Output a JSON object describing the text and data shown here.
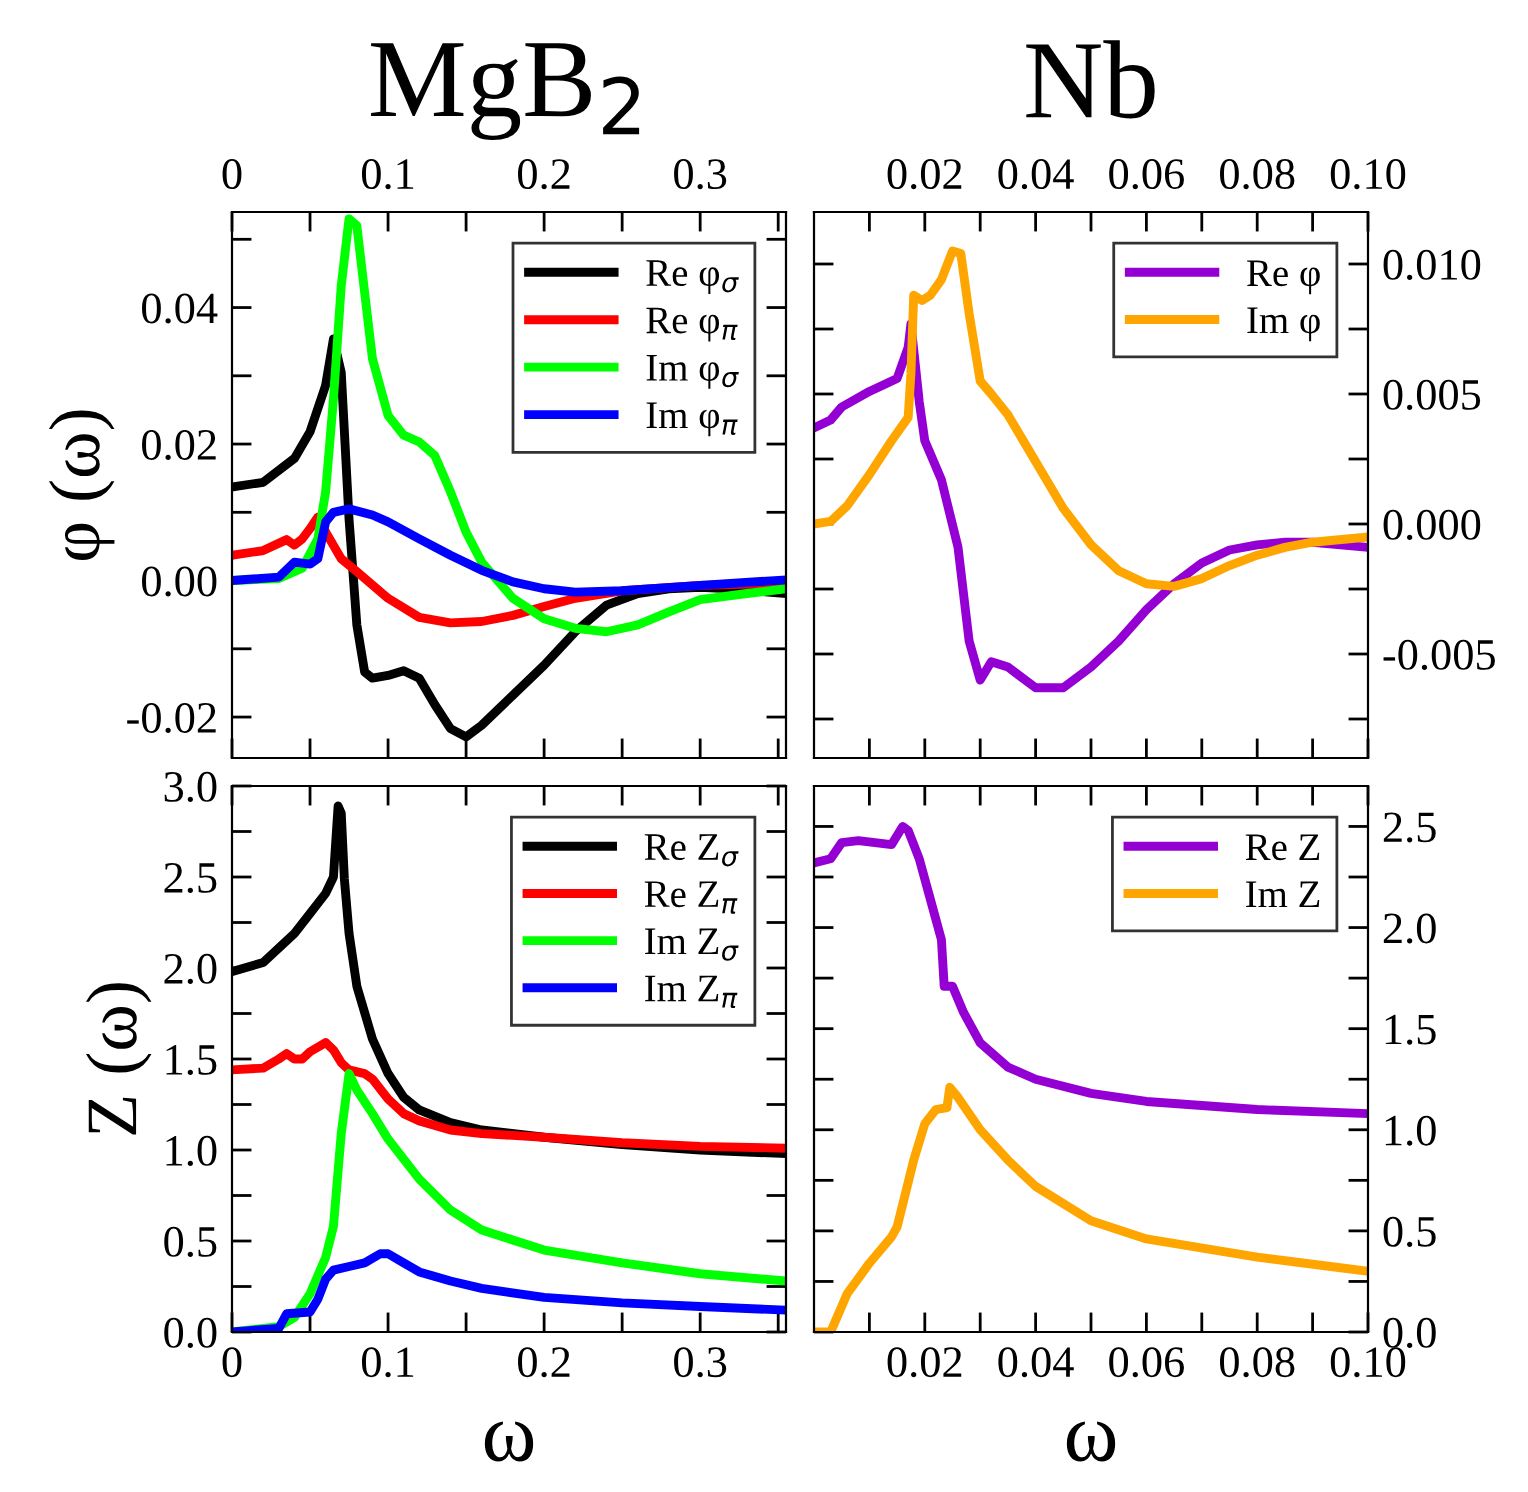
{
  "chart_data": [
    {
      "type": "line",
      "title": "MgB$_{2}$",
      "ylabel": "φ (ω)",
      "legend": "top right",
      "grid": false,
      "marker": "none",
      "line_style": "solid",
      "xlim": [
        0,
        0.355
      ],
      "ylim": [
        -0.026,
        0.054
      ],
      "xticks": [
        0,
        {
          "value": 0.05,
          "label": null
        },
        0.1,
        {
          "value": 0.15,
          "label": null
        },
        0.2,
        {
          "value": 0.25,
          "label": null
        },
        0.3,
        {
          "value": 0.35,
          "label": null
        }
      ],
      "yticks": [
        {
          "value": -0.02,
          "label": "-0.02"
        },
        {
          "value": -0.01,
          "label": null
        },
        {
          "value": 0,
          "label": "0.00"
        },
        {
          "value": 0.01,
          "label": null
        },
        0.02,
        {
          "value": 0.03,
          "label": null
        },
        0.04,
        {
          "value": 0.05,
          "label": null
        }
      ],
      "series": [
        {
          "name": "Re φ$_{σ}$",
          "color": "#000000",
          "x": [
            0,
            0.02,
            0.04,
            0.05,
            0.06,
            0.065,
            0.07,
            0.075,
            0.08,
            0.085,
            0.09,
            0.1,
            0.11,
            0.12,
            0.13,
            0.14,
            0.15,
            0.16,
            0.18,
            0.2,
            0.22,
            0.24,
            0.26,
            0.28,
            0.3,
            0.32,
            0.355
          ],
          "values": [
            0.0137,
            0.0144,
            0.0179,
            0.0218,
            0.0286,
            0.0354,
            0.0305,
            0.009,
            -0.0065,
            -0.0134,
            -0.0143,
            -0.0139,
            -0.0132,
            -0.0143,
            -0.0182,
            -0.0217,
            -0.0229,
            -0.0212,
            -0.0168,
            -0.0124,
            -0.0075,
            -0.0036,
            -0.0019,
            -0.0012,
            -0.001,
            -0.0012,
            -0.0019
          ]
        },
        {
          "name": "Re φ$_{π}$",
          "color": "#ff0000",
          "x": [
            0,
            0.02,
            0.035,
            0.04,
            0.045,
            0.05,
            0.055,
            0.06,
            0.07,
            0.08,
            0.1,
            0.12,
            0.14,
            0.16,
            0.18,
            0.2,
            0.22,
            0.25,
            0.3,
            0.355
          ],
          "values": [
            0.0037,
            0.0044,
            0.006,
            0.0052,
            0.0061,
            0.0076,
            0.0093,
            0.0071,
            0.0032,
            0.0013,
            -0.0026,
            -0.0054,
            -0.0062,
            -0.006,
            -0.0051,
            -0.0038,
            -0.0026,
            -0.0015,
            -0.0007,
            -0.0004
          ]
        },
        {
          "name": "Im φ$_{σ}$",
          "color": "#00ff00",
          "x": [
            0,
            0.03,
            0.045,
            0.055,
            0.06,
            0.065,
            0.07,
            0.075,
            0.08,
            0.085,
            0.09,
            0.1,
            0.11,
            0.12,
            0.13,
            0.14,
            0.15,
            0.16,
            0.18,
            0.2,
            0.22,
            0.24,
            0.26,
            0.28,
            0.3,
            0.33,
            0.355
          ],
          "values": [
            0,
            0.0003,
            0.0018,
            0.0061,
            0.013,
            0.0266,
            0.0432,
            0.053,
            0.052,
            0.0422,
            0.0325,
            0.0242,
            0.0213,
            0.0203,
            0.0183,
            0.013,
            0.0071,
            0.0027,
            -0.0026,
            -0.0056,
            -0.007,
            -0.0075,
            -0.0065,
            -0.0046,
            -0.0028,
            -0.0019,
            -0.0012
          ]
        },
        {
          "name": "Im φ$_{π}$",
          "color": "#0000ff",
          "x": [
            0,
            0.03,
            0.04,
            0.05,
            0.055,
            0.06,
            0.065,
            0.075,
            0.09,
            0.1,
            0.12,
            0.14,
            0.16,
            0.18,
            0.2,
            0.22,
            0.25,
            0.3,
            0.355
          ],
          "values": [
            0,
            0.0005,
            0.0027,
            0.0024,
            0.0032,
            0.0086,
            0.01,
            0.0105,
            0.0096,
            0.0086,
            0.0061,
            0.0037,
            0.0015,
            -0.0002,
            -0.0012,
            -0.0017,
            -0.0015,
            -0.0007,
            0.0001
          ]
        }
      ]
    },
    {
      "type": "line",
      "title": "Nb",
      "legend": "top right",
      "grid": false,
      "marker": "none",
      "line_style": "solid",
      "xlim": [
        0,
        0.1
      ],
      "ylim": [
        -0.009,
        0.012
      ],
      "xticks": [
        {
          "value": 0.01,
          "label": null
        },
        0.02,
        {
          "value": 0.03,
          "label": null
        },
        0.04,
        {
          "value": 0.05,
          "label": null
        },
        0.06,
        {
          "value": 0.07,
          "label": null
        },
        0.08,
        {
          "value": 0.09,
          "label": null
        },
        {
          "value": 0.1,
          "label": "0.10"
        }
      ],
      "yticks": [
        {
          "value": -0.0075,
          "label": null
        },
        {
          "value": -0.005,
          "label": "-0.005"
        },
        {
          "value": -0.0025,
          "label": null
        },
        {
          "value": 0,
          "label": "0.000"
        },
        {
          "value": 0.0025,
          "label": null
        },
        0.005,
        {
          "value": 0.0075,
          "label": null
        },
        {
          "value": 0.01,
          "label": "0.010"
        }
      ],
      "series": [
        {
          "name": "Re φ",
          "color": "#9400d3",
          "x": [
            0,
            0.003,
            0.005,
            0.01,
            0.015,
            0.017,
            0.0175,
            0.019,
            0.02,
            0.023,
            0.026,
            0.028,
            0.03,
            0.032,
            0.035,
            0.04,
            0.045,
            0.05,
            0.055,
            0.06,
            0.065,
            0.07,
            0.075,
            0.08,
            0.085,
            0.09,
            0.1
          ],
          "values": [
            0.0037,
            0.004,
            0.0045,
            0.0051,
            0.0056,
            0.0068,
            0.0077,
            0.0047,
            0.0032,
            0.0017,
            -0.0009,
            -0.0045,
            -0.006,
            -0.0053,
            -0.0055,
            -0.0063,
            -0.0063,
            -0.0055,
            -0.0045,
            -0.0033,
            -0.0023,
            -0.0015,
            -0.001,
            -0.0008,
            -0.0007,
            -0.0007,
            -0.0009
          ]
        },
        {
          "name": "Im φ",
          "color": "#ffa500",
          "x": [
            0,
            0.003,
            0.006,
            0.01,
            0.014,
            0.017,
            0.0175,
            0.018,
            0.0195,
            0.021,
            0.023,
            0.025,
            0.0265,
            0.028,
            0.03,
            0.032,
            0.035,
            0.04,
            0.045,
            0.05,
            0.055,
            0.06,
            0.065,
            0.07,
            0.075,
            0.08,
            0.085,
            0.09,
            0.1
          ],
          "values": [
            0,
            0.0001,
            0.0007,
            0.0019,
            0.0032,
            0.0041,
            0.0058,
            0.0088,
            0.0086,
            0.0088,
            0.0094,
            0.0105,
            0.0104,
            0.0081,
            0.0055,
            0.005,
            0.0042,
            0.0024,
            0.0006,
            -0.0008,
            -0.0018,
            -0.0023,
            -0.0024,
            -0.0021,
            -0.0016,
            -0.0012,
            -0.0009,
            -0.0007,
            -0.0005
          ]
        }
      ]
    },
    {
      "type": "line",
      "xlabel": "ω",
      "ylabel": "Z (ω)",
      "legend": "top right",
      "grid": false,
      "marker": "none",
      "line_style": "solid",
      "xlim": [
        0,
        0.355
      ],
      "ylim": [
        0,
        3.0
      ],
      "xticks": [
        0,
        {
          "value": 0.05,
          "label": null
        },
        0.1,
        {
          "value": 0.15,
          "label": null
        },
        0.2,
        {
          "value": 0.25,
          "label": null
        },
        0.3,
        {
          "value": 0.35,
          "label": null
        }
      ],
      "yticks": [
        {
          "value": 0,
          "label": "0.0"
        },
        {
          "value": 0.25,
          "label": null
        },
        0.5,
        {
          "value": 0.75,
          "label": null
        },
        {
          "value": 1,
          "label": "1.0"
        },
        {
          "value": 1.25,
          "label": null
        },
        1.5,
        {
          "value": 1.75,
          "label": null
        },
        {
          "value": 2,
          "label": "2.0"
        },
        {
          "value": 2.25,
          "label": null
        },
        2.5,
        {
          "value": 2.75,
          "label": null
        },
        {
          "value": 3,
          "label": "3.0"
        }
      ],
      "series": [
        {
          "name": "Re Z$_{σ}$",
          "color": "#000000",
          "x": [
            0,
            0.02,
            0.04,
            0.05,
            0.06,
            0.065,
            0.068,
            0.07,
            0.072,
            0.075,
            0.08,
            0.09,
            0.1,
            0.11,
            0.12,
            0.14,
            0.16,
            0.2,
            0.25,
            0.3,
            0.355
          ],
          "values": [
            1.98,
            2.03,
            2.19,
            2.3,
            2.41,
            2.5,
            2.89,
            2.85,
            2.49,
            2.19,
            1.9,
            1.61,
            1.42,
            1.29,
            1.22,
            1.15,
            1.11,
            1.07,
            1.03,
            1.0,
            0.98
          ]
        },
        {
          "name": "Re Z$_{π}$",
          "color": "#ff0000",
          "x": [
            0,
            0.02,
            0.03,
            0.035,
            0.04,
            0.045,
            0.05,
            0.06,
            0.065,
            0.07,
            0.075,
            0.085,
            0.09,
            0.1,
            0.11,
            0.12,
            0.14,
            0.16,
            0.2,
            0.25,
            0.3,
            0.355
          ],
          "values": [
            1.44,
            1.45,
            1.5,
            1.53,
            1.5,
            1.5,
            1.54,
            1.59,
            1.55,
            1.48,
            1.44,
            1.42,
            1.39,
            1.28,
            1.2,
            1.16,
            1.11,
            1.09,
            1.07,
            1.04,
            1.02,
            1.01
          ]
        },
        {
          "name": "Im Z$_{σ}$",
          "color": "#00ff00",
          "x": [
            0,
            0.03,
            0.04,
            0.05,
            0.06,
            0.065,
            0.07,
            0.075,
            0.08,
            0.09,
            0.1,
            0.12,
            0.14,
            0.16,
            0.2,
            0.25,
            0.3,
            0.355
          ],
          "values": [
            0,
            0.03,
            0.08,
            0.21,
            0.41,
            0.58,
            1.09,
            1.42,
            1.33,
            1.2,
            1.06,
            0.84,
            0.67,
            0.56,
            0.45,
            0.38,
            0.32,
            0.28
          ]
        },
        {
          "name": "Im Z$_{π}$",
          "color": "#0000ff",
          "x": [
            0,
            0.03,
            0.035,
            0.05,
            0.055,
            0.06,
            0.065,
            0.075,
            0.085,
            0.095,
            0.1,
            0.11,
            0.12,
            0.14,
            0.16,
            0.2,
            0.25,
            0.3,
            0.355
          ],
          "values": [
            0,
            0.02,
            0.1,
            0.11,
            0.18,
            0.29,
            0.34,
            0.36,
            0.38,
            0.43,
            0.43,
            0.38,
            0.33,
            0.28,
            0.24,
            0.19,
            0.16,
            0.14,
            0.12
          ]
        }
      ]
    },
    {
      "type": "line",
      "xlabel": "ω",
      "legend": "top right",
      "grid": false,
      "marker": "none",
      "line_style": "solid",
      "xlim": [
        0,
        0.1
      ],
      "ylim": [
        0,
        2.7
      ],
      "xticks": [
        {
          "value": 0.01,
          "label": null
        },
        0.02,
        {
          "value": 0.03,
          "label": null
        },
        0.04,
        {
          "value": 0.05,
          "label": null
        },
        0.06,
        {
          "value": 0.07,
          "label": null
        },
        0.08,
        {
          "value": 0.09,
          "label": null
        },
        {
          "value": 0.1,
          "label": "0.10"
        }
      ],
      "yticks": [
        {
          "value": 0,
          "label": "0.0"
        },
        {
          "value": 0.25,
          "label": null
        },
        0.5,
        {
          "value": 0.75,
          "label": null
        },
        {
          "value": 1,
          "label": "1.0"
        },
        {
          "value": 1.25,
          "label": null
        },
        1.5,
        {
          "value": 1.75,
          "label": null
        },
        {
          "value": 2,
          "label": "2.0"
        },
        {
          "value": 2.25,
          "label": null
        },
        2.5
      ],
      "series": [
        {
          "name": "Re Z",
          "color": "#9400d3",
          "x": [
            0,
            0.003,
            0.005,
            0.008,
            0.014,
            0.016,
            0.017,
            0.019,
            0.021,
            0.023,
            0.0235,
            0.025,
            0.027,
            0.03,
            0.035,
            0.04,
            0.05,
            0.06,
            0.08,
            0.1
          ],
          "values": [
            2.32,
            2.34,
            2.42,
            2.43,
            2.41,
            2.5,
            2.48,
            2.34,
            2.14,
            1.94,
            1.71,
            1.71,
            1.58,
            1.43,
            1.31,
            1.25,
            1.18,
            1.14,
            1.1,
            1.08
          ]
        },
        {
          "name": "Im Z",
          "color": "#ffa500",
          "x": [
            0,
            0.003,
            0.006,
            0.01,
            0.014,
            0.015,
            0.018,
            0.02,
            0.022,
            0.024,
            0.0245,
            0.026,
            0.03,
            0.035,
            0.04,
            0.05,
            0.06,
            0.08,
            0.1
          ],
          "values": [
            0,
            0,
            0.19,
            0.34,
            0.47,
            0.52,
            0.85,
            1.03,
            1.1,
            1.11,
            1.21,
            1.16,
            1.0,
            0.85,
            0.72,
            0.55,
            0.46,
            0.37,
            0.3
          ]
        }
      ]
    }
  ]
}
